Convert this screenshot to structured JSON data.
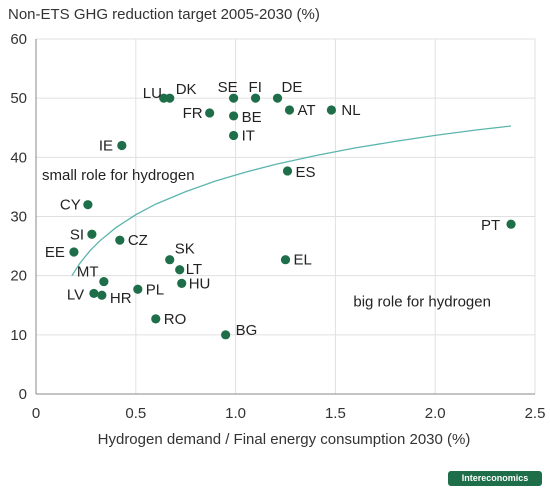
{
  "chart_data": {
    "type": "scatter",
    "title": "Non-ETS GHG reduction target 2005-2030 (%)",
    "xlabel": "Hydrogen demand / Final energy consumption 2030 (%)",
    "ylabel": "",
    "xlim": [
      0,
      2.5
    ],
    "ylim": [
      0,
      60
    ],
    "xticks": [
      0,
      0.5,
      1.0,
      1.5,
      2.0,
      2.5
    ],
    "xtick_labels": [
      "0",
      "0.5",
      "1.0",
      "1.5",
      "2.0",
      "2.5"
    ],
    "yticks": [
      0,
      10,
      20,
      30,
      40,
      50,
      60
    ],
    "ytick_labels": [
      "0",
      "10",
      "20",
      "30",
      "40",
      "50",
      "60"
    ],
    "grid": true,
    "marker_color": "#1e6e4a",
    "curve_color": "#5bb5ae",
    "points": [
      {
        "label": "LU",
        "x": 0.64,
        "y": 50
      },
      {
        "label": "DK",
        "x": 0.67,
        "y": 50
      },
      {
        "label": "SE",
        "x": 0.99,
        "y": 50
      },
      {
        "label": "FI",
        "x": 1.1,
        "y": 50
      },
      {
        "label": "DE",
        "x": 1.21,
        "y": 50
      },
      {
        "label": "FR",
        "x": 0.87,
        "y": 47.5
      },
      {
        "label": "BE",
        "x": 0.99,
        "y": 47
      },
      {
        "label": "AT",
        "x": 1.27,
        "y": 48
      },
      {
        "label": "NL",
        "x": 1.48,
        "y": 48
      },
      {
        "label": "IT",
        "x": 0.99,
        "y": 43.7
      },
      {
        "label": "IE",
        "x": 0.43,
        "y": 42
      },
      {
        "label": "ES",
        "x": 1.26,
        "y": 37.7
      },
      {
        "label": "CY",
        "x": 0.26,
        "y": 32
      },
      {
        "label": "PT",
        "x": 2.38,
        "y": 28.7
      },
      {
        "label": "SI",
        "x": 0.28,
        "y": 27
      },
      {
        "label": "CZ",
        "x": 0.42,
        "y": 26
      },
      {
        "label": "EE",
        "x": 0.19,
        "y": 24
      },
      {
        "label": "SK",
        "x": 0.67,
        "y": 22.7
      },
      {
        "label": "EL",
        "x": 1.25,
        "y": 22.7
      },
      {
        "label": "LT",
        "x": 0.72,
        "y": 21
      },
      {
        "label": "MT",
        "x": 0.34,
        "y": 19
      },
      {
        "label": "HU",
        "x": 0.73,
        "y": 18.7
      },
      {
        "label": "PL",
        "x": 0.51,
        "y": 17.7
      },
      {
        "label": "LV",
        "x": 0.29,
        "y": 17
      },
      {
        "label": "HR",
        "x": 0.33,
        "y": 16.7
      },
      {
        "label": "RO",
        "x": 0.6,
        "y": 12.7
      },
      {
        "label": "BG",
        "x": 0.95,
        "y": 10
      }
    ],
    "trend_curve": {
      "type": "logarithmic",
      "x": [
        0.18,
        0.22,
        0.27,
        0.32,
        0.4,
        0.5,
        0.6,
        0.75,
        0.9,
        1.05,
        1.2,
        1.4,
        1.6,
        1.8,
        2.0,
        2.2,
        2.38
      ],
      "y": [
        20,
        22.1,
        24.2,
        25.9,
        28.1,
        30.3,
        32.1,
        34.2,
        36.0,
        37.5,
        38.8,
        40.3,
        41.6,
        42.7,
        43.7,
        44.6,
        45.3
      ]
    },
    "annotations": [
      {
        "text": "small role for hydrogen",
        "x": 0.03,
        "y": 36.2
      },
      {
        "text": "big role for hydrogen",
        "x": 1.59,
        "y": 14.8
      }
    ]
  },
  "brand": {
    "text": "Intereconomics"
  }
}
